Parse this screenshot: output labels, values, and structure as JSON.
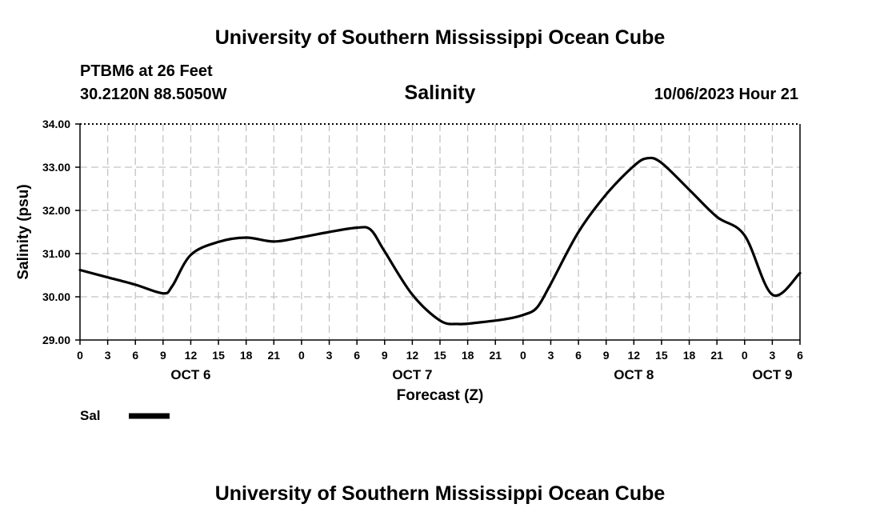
{
  "header": {
    "title": "University of Southern Mississippi Ocean Cube",
    "station": "PTBM6 at 26 Feet",
    "coords": "30.2120N  88.5050W",
    "datetime": "10/06/2023 Hour 21",
    "footer_title": "University of Southern Mississippi Ocean Cube"
  },
  "chart_data": {
    "type": "line",
    "title": "Salinity",
    "xlabel": "Forecast (Z)",
    "ylabel": "Salinity (psu)",
    "ylim": [
      29.0,
      34.0
    ],
    "y_ticks": [
      "29.00",
      "30.00",
      "31.00",
      "32.00",
      "33.00",
      "34.00"
    ],
    "x_tick_labels": [
      "0",
      "3",
      "6",
      "9",
      "12",
      "15",
      "18",
      "21",
      "0",
      "3",
      "6",
      "9",
      "12",
      "15",
      "18",
      "21",
      "0",
      "3",
      "6",
      "9",
      "12",
      "15",
      "18",
      "21",
      "0",
      "3",
      "6"
    ],
    "day_labels": [
      {
        "label": "OCT 6",
        "hour": 12
      },
      {
        "label": "OCT 7",
        "hour": 36
      },
      {
        "label": "OCT 8",
        "hour": 60
      },
      {
        "label": "OCT 9",
        "hour": 75
      }
    ],
    "xlim_hours": [
      0,
      78
    ],
    "grid": true,
    "legend": {
      "label": "Sal",
      "position": "bottom-left"
    },
    "series": [
      {
        "name": "Sal",
        "color": "#000000",
        "x_hours": [
          0,
          3,
          6,
          9,
          10,
          12,
          15,
          18,
          21,
          24,
          27,
          30,
          31.5,
          33,
          36,
          39,
          41,
          43,
          46,
          48,
          49.5,
          51,
          54,
          57,
          60,
          61.5,
          63,
          66,
          69,
          72,
          75,
          78
        ],
        "values": [
          30.62,
          30.45,
          30.28,
          30.08,
          30.25,
          30.97,
          31.27,
          31.37,
          31.28,
          31.38,
          31.5,
          31.6,
          31.55,
          31.05,
          30.05,
          29.45,
          29.37,
          29.4,
          29.48,
          29.58,
          29.75,
          30.3,
          31.5,
          32.37,
          33.03,
          33.21,
          33.1,
          32.48,
          31.85,
          31.42,
          30.05,
          30.55
        ]
      }
    ]
  }
}
